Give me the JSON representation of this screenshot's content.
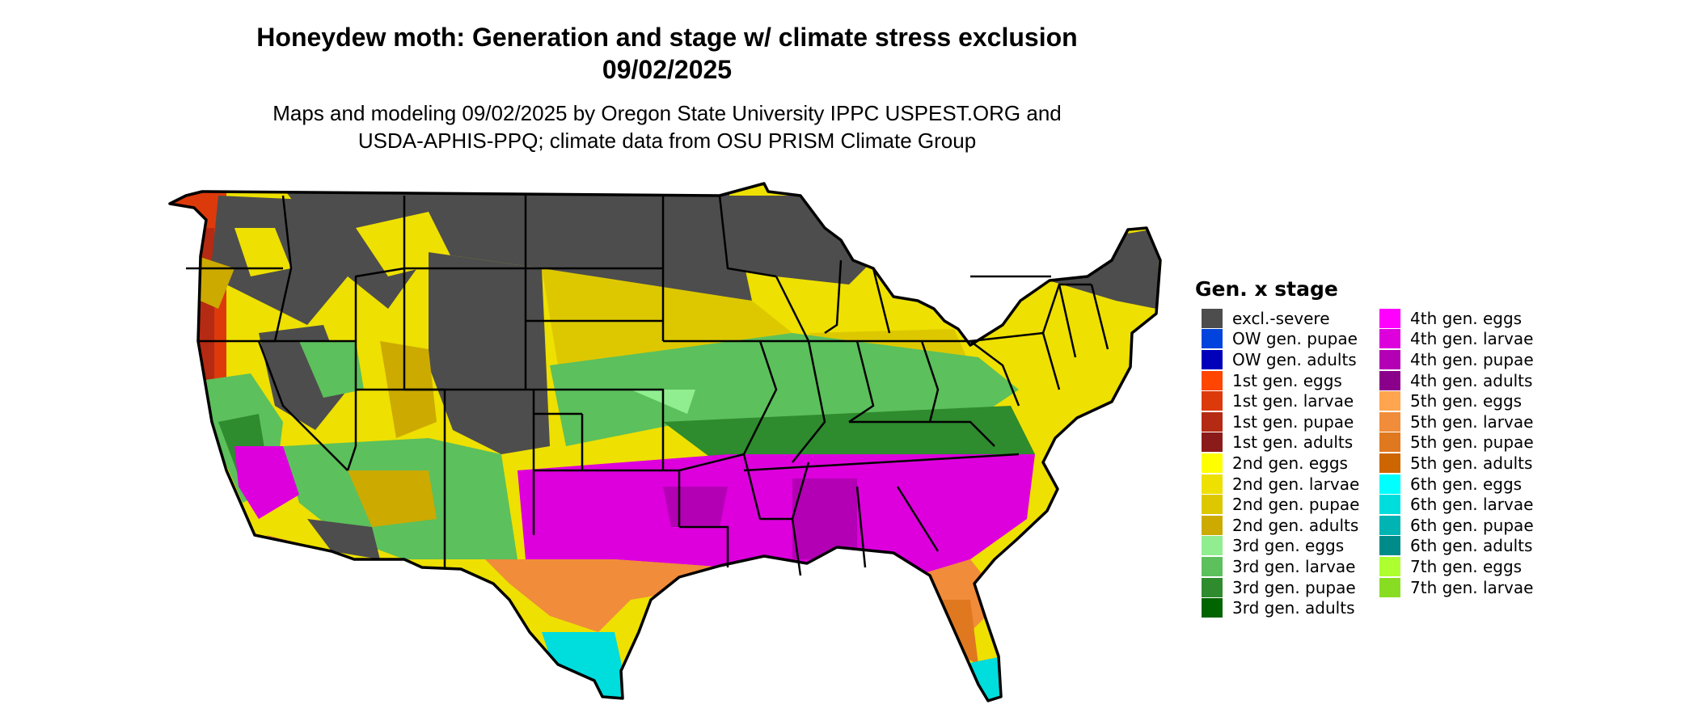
{
  "title_line1": "Honeydew moth: Generation and stage w/ climate stress exclusion",
  "title_line2": "09/02/2025",
  "subtitle_line1": "Maps and modeling 09/02/2025 by Oregon State University IPPC USPEST.ORG and",
  "subtitle_line2": "USDA-APHIS-PPQ; climate data from OSU PRISM Climate Group",
  "legend": {
    "title": "Gen. x stage",
    "items": [
      {
        "label": "excl.-severe",
        "color": "#4d4d4d"
      },
      {
        "label": "OW gen. pupae",
        "color": "#0044dd"
      },
      {
        "label": "OW gen. adults",
        "color": "#0000bb"
      },
      {
        "label": "1st gen. eggs",
        "color": "#ff4500"
      },
      {
        "label": "1st gen. larvae",
        "color": "#dd3a0c"
      },
      {
        "label": "1st gen. pupae",
        "color": "#b52a12"
      },
      {
        "label": "1st gen. adults",
        "color": "#8b1a1a"
      },
      {
        "label": "2nd gen. eggs",
        "color": "#ffff00"
      },
      {
        "label": "2nd gen. larvae",
        "color": "#eee000"
      },
      {
        "label": "2nd gen. pupae",
        "color": "#ddc800"
      },
      {
        "label": "2nd gen. adults",
        "color": "#ccaa00"
      },
      {
        "label": "3rd gen. eggs",
        "color": "#90ee90"
      },
      {
        "label": "3rd gen. larvae",
        "color": "#5cc05c"
      },
      {
        "label": "3rd gen. pupae",
        "color": "#2e8b2e"
      },
      {
        "label": "3rd gen. adults",
        "color": "#006400"
      },
      {
        "label": "4th gen. eggs",
        "color": "#ff00ff"
      },
      {
        "label": "4th gen. larvae",
        "color": "#dd00dd"
      },
      {
        "label": "4th gen. pupae",
        "color": "#b400b4"
      },
      {
        "label": "4th gen. adults",
        "color": "#8b008b"
      },
      {
        "label": "5th gen. eggs",
        "color": "#ffa54f"
      },
      {
        "label": "5th gen. larvae",
        "color": "#f08c3a"
      },
      {
        "label": "5th gen. pupae",
        "color": "#e07820"
      },
      {
        "label": "5th gen. adults",
        "color": "#cd6600"
      },
      {
        "label": "6th gen. eggs",
        "color": "#00ffff"
      },
      {
        "label": "6th gen. larvae",
        "color": "#00dddd"
      },
      {
        "label": "6th gen. pupae",
        "color": "#00b4b4"
      },
      {
        "label": "6th gen. adults",
        "color": "#008b8b"
      },
      {
        "label": "7th gen. eggs",
        "color": "#adff2f"
      },
      {
        "label": "7th gen. larvae",
        "color": "#88dd22"
      }
    ]
  }
}
